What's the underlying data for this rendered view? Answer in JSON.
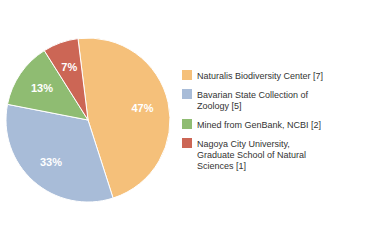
{
  "chart_data": {
    "type": "pie",
    "categories": [
      "Naturalis Biodiversity Center [7]",
      "Bavarian State Collection of\nZoology [5]",
      "Mined from GenBank, NCBI [2]",
      "Nagoya City University,\nGraduate School of Natural\nSciences [1]"
    ],
    "values": [
      47,
      33,
      13,
      7
    ],
    "value_labels": [
      "47%",
      "33%",
      "13%",
      "7%"
    ],
    "colors": [
      "#f5c07a",
      "#a8bcd8",
      "#8fbc72",
      "#cc6655"
    ],
    "data_labels": true,
    "legend": "right"
  }
}
